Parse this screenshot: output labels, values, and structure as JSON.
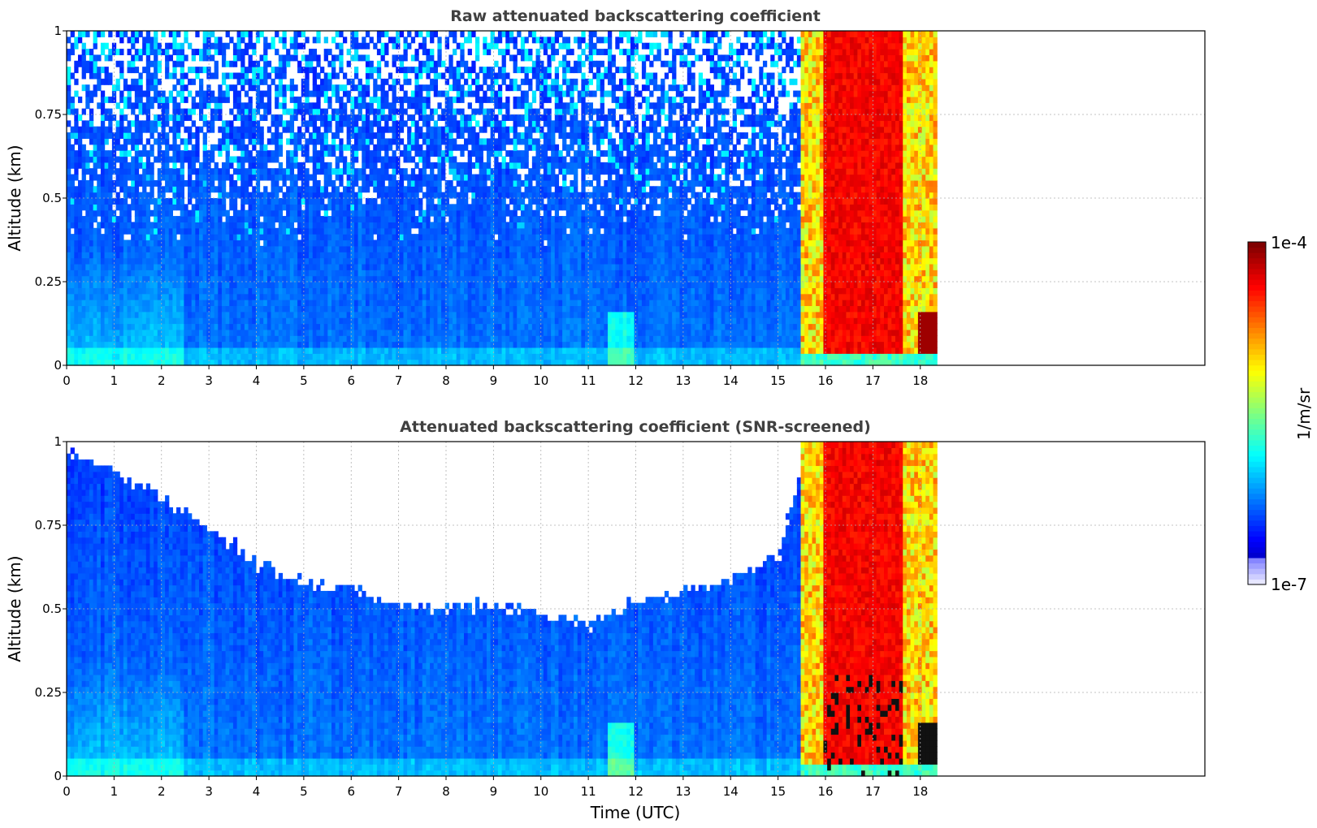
{
  "chart_data": [
    {
      "type": "heatmap",
      "title": "Raw attenuated backscattering coefficient",
      "xlabel": "",
      "ylabel": "Altitude (km)",
      "xlim": [
        0,
        24
      ],
      "ylim": [
        0,
        1
      ],
      "xticks": [
        "0",
        "1",
        "2",
        "3",
        "4",
        "5",
        "6",
        "7",
        "8",
        "9",
        "10",
        "11",
        "12",
        "13",
        "14",
        "15",
        "16",
        "17",
        "18"
      ],
      "yticks": [
        "0",
        "0.25",
        "0.5",
        "0.75",
        "1"
      ],
      "grid": true,
      "screened": false,
      "data_end_hour": 18.35,
      "cloud_start_hour": 15.45,
      "core_start_hour": 15.9,
      "core_end_hour": 17.6
    },
    {
      "type": "heatmap",
      "title": "Attenuated backscattering coefficient (SNR-screened)",
      "xlabel": "Time (UTC)",
      "ylabel": "Altitude (km)",
      "xlim": [
        0,
        24
      ],
      "ylim": [
        0,
        1
      ],
      "xticks": [
        "0",
        "1",
        "2",
        "3",
        "4",
        "5",
        "6",
        "7",
        "8",
        "9",
        "10",
        "11",
        "12",
        "13",
        "14",
        "15",
        "16",
        "17",
        "18"
      ],
      "yticks": [
        "0",
        "0.25",
        "0.5",
        "0.75",
        "1"
      ],
      "grid": true,
      "screened": true,
      "data_end_hour": 18.35,
      "cloud_start_hour": 15.45,
      "core_start_hour": 15.9,
      "core_end_hour": 17.6,
      "screen_top_km": [
        [
          0,
          0.95
        ],
        [
          1,
          0.9
        ],
        [
          2,
          0.82
        ],
        [
          2.5,
          0.78
        ],
        [
          3,
          0.73
        ],
        [
          3.5,
          0.68
        ],
        [
          4,
          0.62
        ],
        [
          5,
          0.57
        ],
        [
          6,
          0.55
        ],
        [
          7,
          0.5
        ],
        [
          8,
          0.5
        ],
        [
          9,
          0.5
        ],
        [
          10,
          0.48
        ],
        [
          10.5,
          0.45
        ],
        [
          11,
          0.44
        ],
        [
          12,
          0.52
        ],
        [
          13,
          0.54
        ],
        [
          14,
          0.58
        ],
        [
          15,
          0.65
        ],
        [
          15.4,
          0.9
        ]
      ]
    }
  ],
  "colorbar": {
    "label": "1/m/sr",
    "max_label": "1e-4",
    "min_label": "1e-7",
    "scale": "log",
    "colormap": "jet"
  }
}
